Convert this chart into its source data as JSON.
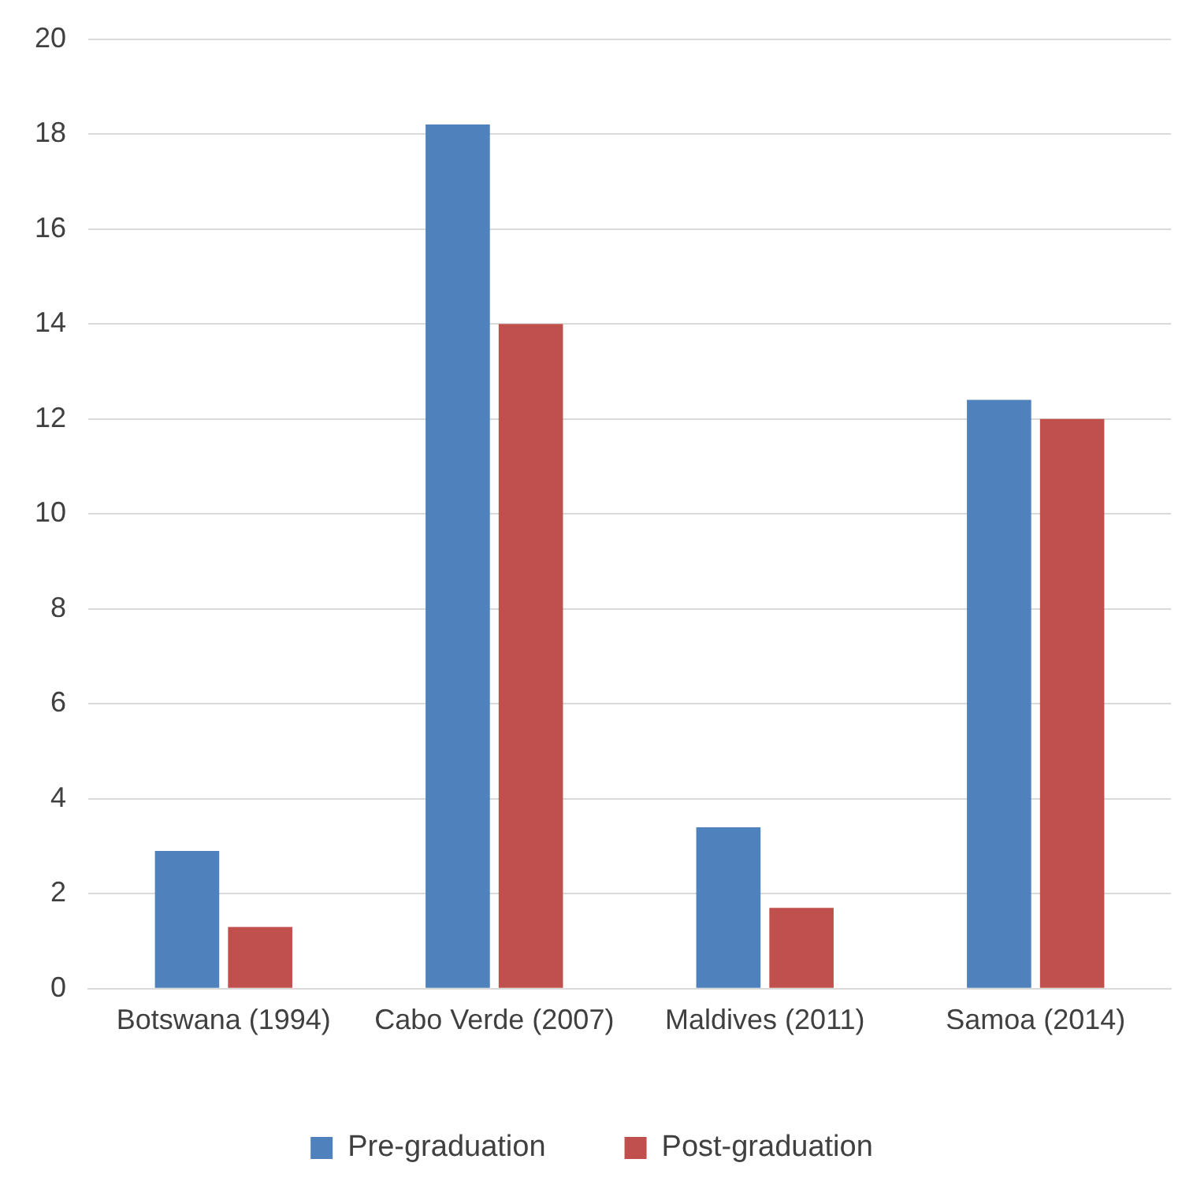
{
  "chart_data": {
    "type": "bar",
    "categories": [
      "Botswana (1994)",
      "Cabo Verde (2007)",
      "Maldives (2011)",
      "Samoa (2014)"
    ],
    "series": [
      {
        "name": "Pre-graduation",
        "color": "#4f81bd",
        "values": [
          2.9,
          18.2,
          3.4,
          12.4
        ]
      },
      {
        "name": "Post-graduation",
        "color": "#c0504d",
        "values": [
          1.3,
          14.0,
          1.7,
          12.0
        ]
      }
    ],
    "ylim": [
      0,
      20
    ],
    "yticks": [
      0,
      2,
      4,
      6,
      8,
      10,
      12,
      14,
      16,
      18,
      20
    ],
    "grid": "y",
    "legend": "bottom"
  }
}
